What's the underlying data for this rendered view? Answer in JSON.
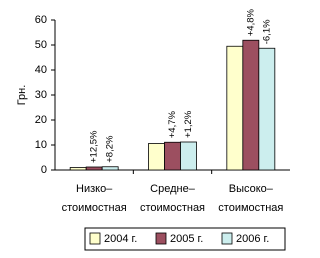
{
  "chart_data": {
    "type": "bar",
    "y_label": "Грн.",
    "categories": [
      [
        "Низко–",
        "стоимостная"
      ],
      [
        "Средне–",
        "стоимостная"
      ],
      [
        "Высоко–",
        "стоимостная"
      ]
    ],
    "series": [
      {
        "name": "2004 г.",
        "color": "#ffffcc",
        "values": [
          1.0,
          10.6,
          49.5
        ]
      },
      {
        "name": "2005 г.",
        "color": "#9c4f60",
        "values": [
          1.2,
          11.1,
          51.9
        ],
        "change_labels": [
          "+12,5%",
          "+4,7%",
          "+4,8%"
        ]
      },
      {
        "name": "2006 г.",
        "color": "#cceeee",
        "values": [
          1.3,
          11.2,
          48.7
        ],
        "change_labels": [
          "+8,2%",
          "+1,2%",
          "-6,1%"
        ]
      }
    ],
    "ylim": [
      0,
      60
    ],
    "yticks": [
      0,
      10,
      20,
      30,
      40,
      50,
      60
    ],
    "grid": false
  }
}
